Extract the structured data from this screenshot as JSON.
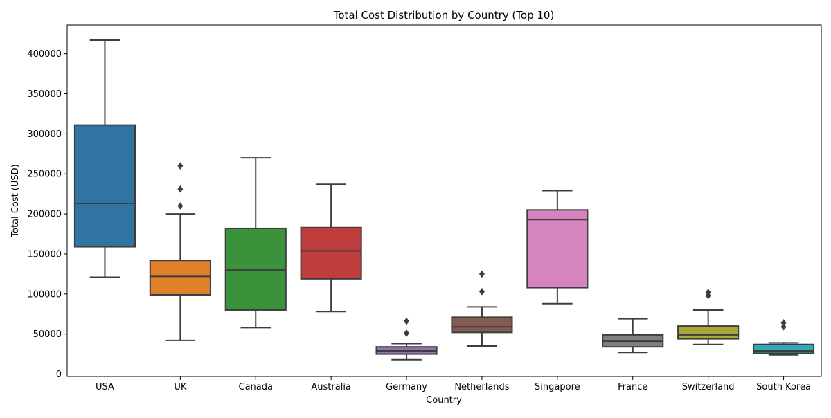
{
  "chart_data": {
    "type": "box",
    "title": "Total Cost Distribution by Country (Top 10)",
    "xlabel": "Country",
    "ylabel": "Total Cost (USD)",
    "ylim": [
      -3000,
      436000
    ],
    "yticks": [
      0,
      50000,
      100000,
      150000,
      200000,
      250000,
      300000,
      350000,
      400000
    ],
    "ytick_labels": [
      "0",
      "50000",
      "100000",
      "150000",
      "200000",
      "250000",
      "300000",
      "350000",
      "400000"
    ],
    "grid": false,
    "legend": "none",
    "categories": [
      "USA",
      "UK",
      "Canada",
      "Australia",
      "Germany",
      "Netherlands",
      "Singapore",
      "France",
      "Switzerland",
      "South Korea"
    ],
    "boxes": [
      {
        "category": "USA",
        "color": "#3274a1",
        "whisker_low": 121000,
        "q1": 159000,
        "median": 213000,
        "q3": 311000,
        "whisker_high": 417000,
        "outliers": []
      },
      {
        "category": "UK",
        "color": "#e1812c",
        "whisker_low": 42000,
        "q1": 99000,
        "median": 122000,
        "q3": 142000,
        "whisker_high": 200000,
        "outliers": [
          210000,
          231000,
          260000
        ]
      },
      {
        "category": "Canada",
        "color": "#3a923a",
        "whisker_low": 58000,
        "q1": 80000,
        "median": 130000,
        "q3": 182000,
        "whisker_high": 270000,
        "outliers": []
      },
      {
        "category": "Australia",
        "color": "#c03d3e",
        "whisker_low": 78000,
        "q1": 119000,
        "median": 154000,
        "q3": 183000,
        "whisker_high": 237000,
        "outliers": []
      },
      {
        "category": "Germany",
        "color": "#9372b2",
        "whisker_low": 18000,
        "q1": 25000,
        "median": 29000,
        "q3": 34000,
        "whisker_high": 38000,
        "outliers": [
          51000,
          66000
        ]
      },
      {
        "category": "Netherlands",
        "color": "#845b53",
        "whisker_low": 35000,
        "q1": 52000,
        "median": 59000,
        "q3": 71000,
        "whisker_high": 84000,
        "outliers": [
          103000,
          125000
        ]
      },
      {
        "category": "Singapore",
        "color": "#d684bd",
        "whisker_low": 88000,
        "q1": 108000,
        "median": 193000,
        "q3": 205000,
        "whisker_high": 229000,
        "outliers": []
      },
      {
        "category": "France",
        "color": "#7f7f7f",
        "whisker_low": 27000,
        "q1": 34000,
        "median": 41000,
        "q3": 49000,
        "whisker_high": 69000,
        "outliers": []
      },
      {
        "category": "Switzerland",
        "color": "#a9aa35",
        "whisker_low": 37000,
        "q1": 44000,
        "median": 49000,
        "q3": 60000,
        "whisker_high": 80000,
        "outliers": [
          98000,
          102000
        ]
      },
      {
        "category": "South Korea",
        "color": "#2eabb8",
        "whisker_low": 24000,
        "q1": 26000,
        "median": 29000,
        "q3": 37000,
        "whisker_high": 39000,
        "outliers": [
          59000,
          64000
        ]
      }
    ]
  }
}
